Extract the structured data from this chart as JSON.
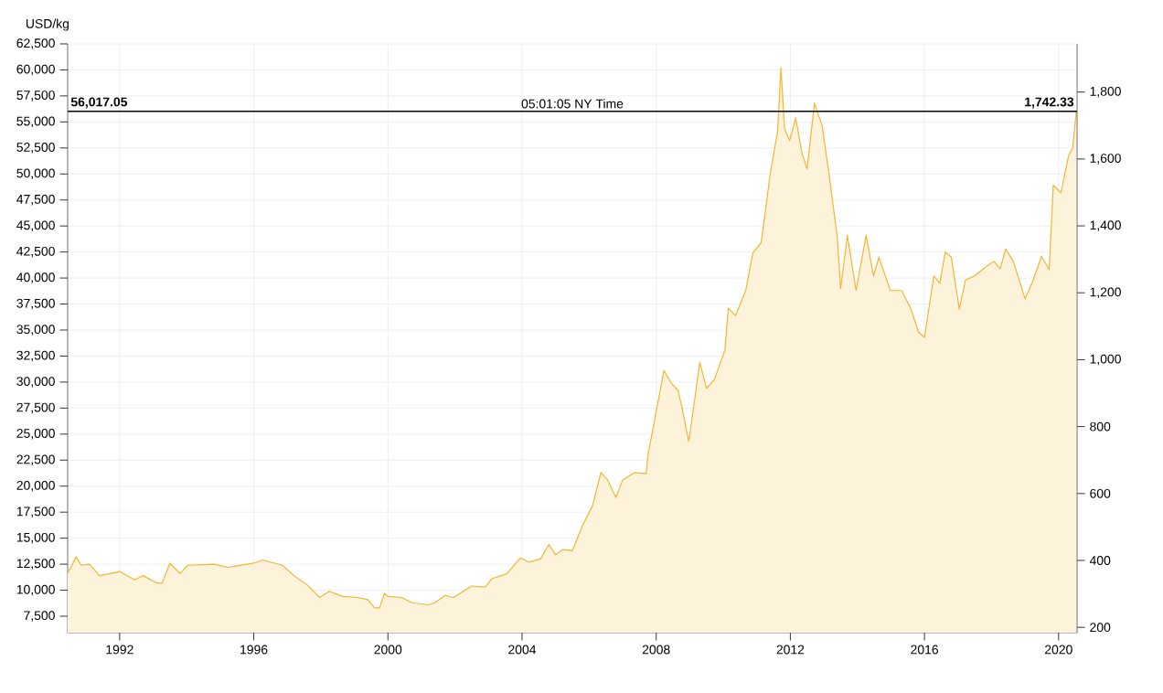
{
  "chart_data": {
    "type": "area",
    "ylabel": "USD/kg",
    "x": [
      1990.45,
      1990.7,
      1990.85,
      1991.1,
      1991.4,
      1992.0,
      1992.45,
      1992.7,
      1993.1,
      1993.27,
      1993.5,
      1993.8,
      1994.03,
      1994.8,
      1995.24,
      1996.0,
      1996.27,
      1996.85,
      1997.2,
      1997.6,
      1997.96,
      1998.25,
      1998.65,
      1999.1,
      1999.4,
      1999.6,
      1999.75,
      1999.9,
      2000.0,
      2000.4,
      2000.73,
      2001.2,
      2001.4,
      2001.7,
      2001.95,
      2002.5,
      2002.9,
      2003.1,
      2003.55,
      2003.95,
      2004.2,
      2004.55,
      2004.8,
      2005.0,
      2005.2,
      2005.5,
      2005.8,
      2006.1,
      2006.35,
      2006.55,
      2006.8,
      2007.0,
      2007.35,
      2007.7,
      2007.75,
      2007.96,
      2008.23,
      2008.45,
      2008.65,
      2008.76,
      2008.97,
      2009.1,
      2009.3,
      2009.5,
      2009.73,
      2010.05,
      2010.15,
      2010.37,
      2010.67,
      2010.88,
      2011.13,
      2011.4,
      2011.62,
      2011.72,
      2011.83,
      2011.98,
      2012.16,
      2012.34,
      2012.5,
      2012.72,
      2012.95,
      2013.17,
      2013.4,
      2013.5,
      2013.7,
      2013.96,
      2014.26,
      2014.48,
      2014.64,
      2014.98,
      2015.32,
      2015.6,
      2015.82,
      2016.0,
      2016.28,
      2016.46,
      2016.62,
      2016.8,
      2017.04,
      2017.22,
      2017.5,
      2017.84,
      2018.07,
      2018.26,
      2018.42,
      2018.65,
      2019.0,
      2019.23,
      2019.49,
      2019.72,
      2019.84,
      2020.07,
      2020.3,
      2020.42,
      2020.53
    ],
    "series": [
      {
        "color": "#f2b632",
        "values": [
          11600,
          13200,
          12400,
          12500,
          11400,
          11800,
          11000,
          11400,
          10700,
          10700,
          12600,
          11600,
          12400,
          12500,
          12200,
          12600,
          12900,
          12400,
          11400,
          10500,
          9300,
          9900,
          9400,
          9300,
          9100,
          8300,
          8300,
          9700,
          9400,
          9300,
          8800,
          8600,
          8800,
          9500,
          9300,
          10400,
          10300,
          11100,
          11600,
          13100,
          12700,
          13000,
          14400,
          13400,
          13900,
          13800,
          16200,
          18100,
          21300,
          20600,
          18900,
          20600,
          21300,
          21200,
          22900,
          26500,
          31100,
          29900,
          29200,
          27700,
          24300,
          27200,
          31900,
          29400,
          30200,
          33100,
          37100,
          36400,
          38800,
          42400,
          43400,
          50000,
          54100,
          60200,
          54300,
          53200,
          55400,
          52100,
          50500,
          56800,
          54600,
          49600,
          43900,
          39000,
          44100,
          38800,
          44100,
          40200,
          42000,
          38800,
          38800,
          37000,
          34800,
          34300,
          40200,
          39500,
          42500,
          42000,
          37000,
          39800,
          40200,
          41100,
          41600,
          40900,
          42800,
          41600,
          38000,
          39700,
          42100,
          40800,
          48900,
          48200,
          51800,
          52500,
          56100
        ]
      }
    ],
    "xlim": [
      1990.45,
      2020.55
    ],
    "xticks": [
      1992,
      1996,
      2000,
      2004,
      2008,
      2012,
      2016,
      2020
    ],
    "ylim": [
      5920,
      62500
    ],
    "yticks": [
      {
        "value": 7500,
        "label": "7,500"
      },
      {
        "value": 10000,
        "label": "10,000"
      },
      {
        "value": 12500,
        "label": "12,500"
      },
      {
        "value": 15000,
        "label": "15,000"
      },
      {
        "value": 17500,
        "label": "17,500"
      },
      {
        "value": 20000,
        "label": "20,000"
      },
      {
        "value": 22500,
        "label": "22,500"
      },
      {
        "value": 25000,
        "label": "25,000"
      },
      {
        "value": 27500,
        "label": "27,500"
      },
      {
        "value": 30000,
        "label": "30,000"
      },
      {
        "value": 32500,
        "label": "32,500"
      },
      {
        "value": 35000,
        "label": "35,000"
      },
      {
        "value": 37500,
        "label": "37,500"
      },
      {
        "value": 40000,
        "label": "40,000"
      },
      {
        "value": 42500,
        "label": "42,500"
      },
      {
        "value": 45000,
        "label": "45,000"
      },
      {
        "value": 47500,
        "label": "47,500"
      },
      {
        "value": 50000,
        "label": "50,000"
      },
      {
        "value": 52500,
        "label": "52,500"
      },
      {
        "value": 55000,
        "label": "55,000"
      },
      {
        "value": 57500,
        "label": "57,500"
      },
      {
        "value": 60000,
        "label": "60,000"
      },
      {
        "value": 62500,
        "label": "62,500"
      }
    ],
    "y2lim": [
      184.1,
      1944.0
    ],
    "y2ticks": [
      200,
      400,
      600,
      800,
      {
        "value": 1000,
        "label": "1,000"
      },
      {
        "value": 1200,
        "label": "1,200"
      },
      {
        "value": 1400,
        "label": "1,400"
      },
      {
        "value": 1600,
        "label": "1,600"
      },
      {
        "value": 1800,
        "label": "1,800"
      }
    ],
    "grid": true,
    "ref_lines": [
      {
        "axis": "y",
        "value": 56017.05,
        "label": "56,017.05",
        "color": "#000000"
      }
    ],
    "annotations": [
      "05:01:05 NY Time",
      "1,742.33"
    ]
  }
}
